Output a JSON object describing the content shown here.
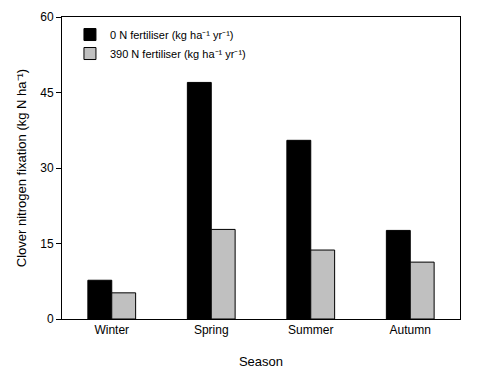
{
  "chart_data": {
    "type": "bar",
    "x_label": "Season",
    "y_label": "Clover nitrogen fixation (kg N ha⁻¹)",
    "categories": [
      "Winter",
      "Spring",
      "Summer",
      "Autumn"
    ],
    "series": [
      {
        "name": "0 N fertiliser (kg ha⁻¹ yr⁻¹)",
        "color": "#000000",
        "values": [
          7.7,
          47,
          35.5,
          17.6
        ]
      },
      {
        "name": "390 N fertiliser (kg ha⁻¹ yr⁻¹)",
        "color": "#c0c0c0",
        "values": [
          5.2,
          17.8,
          13.7,
          11.3
        ]
      }
    ],
    "ylim": [
      0,
      60
    ],
    "yticks": [
      0,
      15,
      30,
      45,
      60
    ],
    "grid": false,
    "legend": "upper left"
  }
}
